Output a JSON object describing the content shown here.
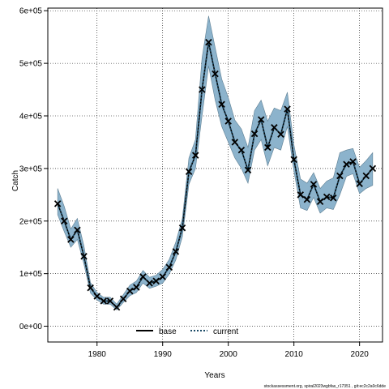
{
  "chart_data": {
    "type": "line",
    "xlabel": "Years",
    "ylabel": "Catch",
    "xlim": [
      1972.5,
      2023.5
    ],
    "ylim": [
      -30000,
      605000
    ],
    "xticks": [
      1980,
      1990,
      2000,
      2010,
      2020
    ],
    "xtick_labels": [
      "1980",
      "1990",
      "2000",
      "2010",
      "2020"
    ],
    "yticks": [
      0,
      100000,
      200000,
      300000,
      400000,
      500000,
      600000
    ],
    "ytick_labels": [
      "0e+00",
      "1e+05",
      "2e+05",
      "3e+05",
      "4e+05",
      "5e+05",
      "6e+05"
    ],
    "grid": true,
    "legend": {
      "placement": "bottom-center",
      "entries": [
        {
          "name": "base",
          "style": "solid",
          "color": "#000000"
        },
        {
          "name": "current",
          "style": "dotted",
          "color": "#1a4a66"
        }
      ]
    },
    "years": [
      1974,
      1975,
      1976,
      1977,
      1978,
      1979,
      1980,
      1981,
      1982,
      1983,
      1984,
      1985,
      1986,
      1987,
      1988,
      1989,
      1990,
      1991,
      1992,
      1993,
      1994,
      1995,
      1996,
      1997,
      1998,
      1999,
      2000,
      2001,
      2002,
      2003,
      2004,
      2005,
      2006,
      2007,
      2008,
      2009,
      2010,
      2011,
      2012,
      2013,
      2014,
      2015,
      2016,
      2017,
      2018,
      2019,
      2020,
      2021,
      2022
    ],
    "series": [
      {
        "name": "current",
        "marker": "x",
        "values": [
          233000,
          200000,
          165000,
          183000,
          133000,
          73000,
          57000,
          48000,
          48000,
          36000,
          52000,
          67000,
          74000,
          94000,
          82000,
          86000,
          94000,
          112000,
          142000,
          187000,
          294000,
          325000,
          450000,
          540000,
          480000,
          422000,
          390000,
          350000,
          335000,
          297000,
          366000,
          393000,
          340000,
          378000,
          365000,
          413000,
          317000,
          250000,
          241000,
          270000,
          237000,
          246000,
          244000,
          286000,
          308000,
          313000,
          271000,
          286000,
          300000
        ]
      }
    ],
    "band": {
      "upper": [
        262000,
        228000,
        185000,
        205000,
        153000,
        83000,
        64000,
        55000,
        55000,
        42000,
        60000,
        78000,
        86000,
        106000,
        93000,
        97000,
        108000,
        127000,
        160000,
        205000,
        320000,
        355000,
        510000,
        590000,
        530000,
        470000,
        435000,
        392000,
        375000,
        340000,
        410000,
        430000,
        390000,
        415000,
        410000,
        445000,
        345000,
        280000,
        272000,
        292000,
        262000,
        276000,
        282000,
        330000,
        335000,
        338000,
        302000,
        315000,
        330000
      ],
      "lower": [
        212000,
        180000,
        150000,
        165000,
        118000,
        63000,
        50000,
        42000,
        42000,
        31000,
        45000,
        58000,
        64000,
        82000,
        72000,
        76000,
        82000,
        99000,
        126000,
        170000,
        270000,
        300000,
        400000,
        495000,
        430000,
        380000,
        350000,
        320000,
        300000,
        272000,
        335000,
        355000,
        305000,
        340000,
        335000,
        380000,
        295000,
        225000,
        220000,
        245000,
        215000,
        225000,
        222000,
        250000,
        285000,
        290000,
        252000,
        262000,
        268000
      ]
    },
    "band_color": "#8cb3cc"
  },
  "footer_text": "stockassessment.org, spiral2023wgbfas_r17351 , git:ec2c2a0c6dde"
}
